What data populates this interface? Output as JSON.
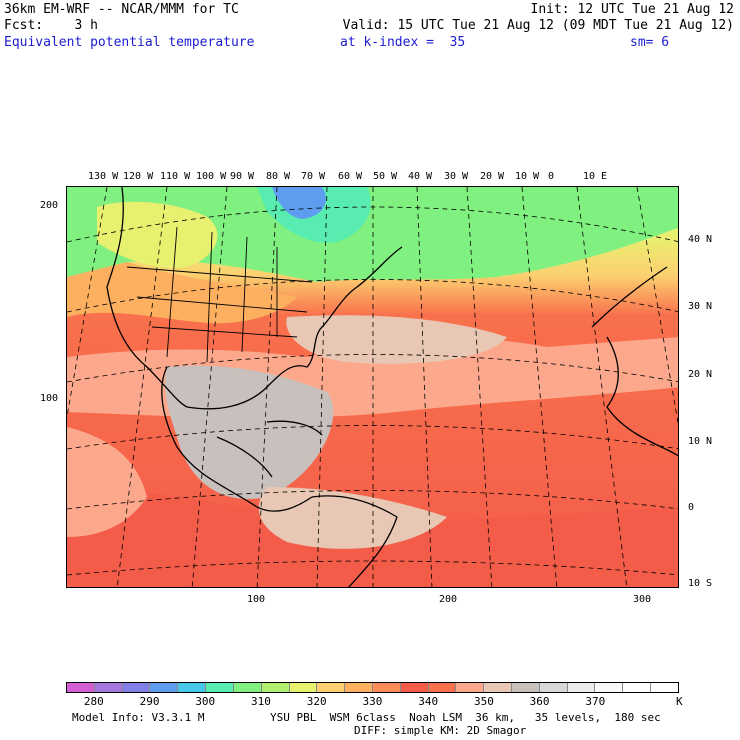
{
  "header": {
    "line1_left": "36km EM-WRF -- NCAR/MMM for TC",
    "line1_right": "Init: 12 UTC Tue 21 Aug 12",
    "line2_left": "Fcst:    3 h",
    "line2_right": "Valid: 15 UTC Tue 21 Aug 12 (09 MDT Tue 21 Aug 12)",
    "field_name": "Equivalent potential temperature",
    "level": "at k-index =  35",
    "smoothing": "sm= 6"
  },
  "map": {
    "lon_labels": [
      "130 W",
      "120 W",
      "110 W",
      "100 W",
      "90 W",
      "80 W",
      "70 W",
      "60 W",
      "50 W",
      "40 W",
      "30 W",
      "20 W",
      "10 W",
      "0",
      "10 E"
    ],
    "lat_labels": [
      "40 N",
      "30 N",
      "20 N",
      "10 N",
      "0",
      "10 S"
    ],
    "x_axis_labels": [
      "100",
      "200",
      "300"
    ],
    "y_axis_labels": [
      "200",
      "100"
    ]
  },
  "colorbar": {
    "colors": [
      "#d45ed4",
      "#a478de",
      "#8080e8",
      "#5e9cf0",
      "#48c8e8",
      "#58ecb0",
      "#80f080",
      "#b0f070",
      "#e8f070",
      "#fcd070",
      "#fcb060",
      "#fc8c58",
      "#f45c4a",
      "#f8704c",
      "#fca88c",
      "#e8c8b4",
      "#c8c0bc",
      "#d8d8d8",
      "#ececec",
      "#f8f8f8",
      "#ffffff",
      "#ffffff"
    ],
    "labels": [
      "280",
      "290",
      "300",
      "310",
      "320",
      "330",
      "340",
      "350",
      "360",
      "370"
    ],
    "units": "K"
  },
  "footer": {
    "model_info": "Model Info: V3.3.1 M",
    "physics": "YSU PBL  WSM 6class  Noah LSM  36 km,   35 levels,  180 sec",
    "physics2": "DIFF: simple KM: 2D Smagor"
  }
}
